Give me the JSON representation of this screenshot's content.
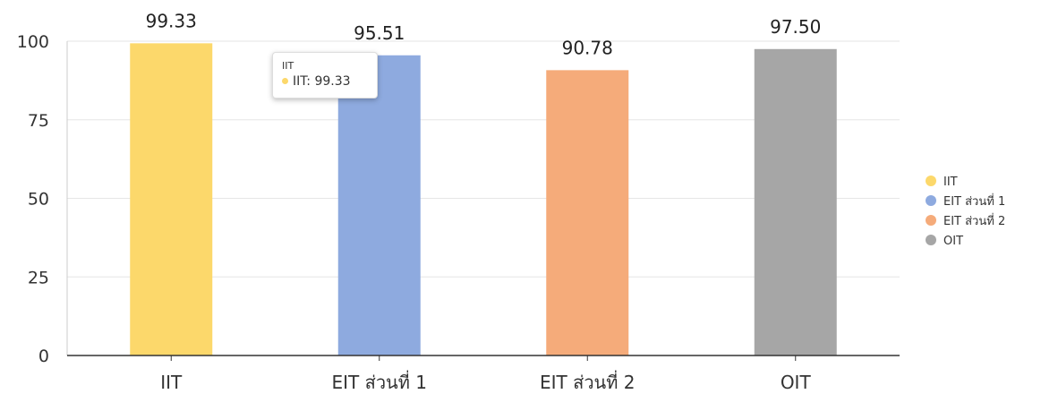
{
  "chart_data": {
    "type": "bar",
    "categories": [
      "IIT",
      "EIT ส่วนที่ 1",
      "EIT ส่วนที่ 2",
      "OIT"
    ],
    "values": [
      99.33,
      95.51,
      90.78,
      97.5
    ],
    "data_labels": [
      "99.33",
      "95.51",
      "90.78",
      "97.50"
    ],
    "colors": [
      "#fcd86b",
      "#8eaadf",
      "#f5ab7a",
      "#a6a6a6"
    ],
    "title": "",
    "xlabel": "",
    "ylabel": "",
    "ylim": [
      0,
      100
    ],
    "yticks": [
      0,
      25,
      50,
      75,
      100
    ],
    "grid": true,
    "legend": {
      "placement": "right",
      "entries": [
        "IIT",
        "EIT ส่วนที่ 1",
        "EIT ส่วนที่ 2",
        "OIT"
      ]
    },
    "tooltip": {
      "title": "IIT",
      "label": "IIT: 99.33",
      "color": "#fcd86b"
    }
  }
}
